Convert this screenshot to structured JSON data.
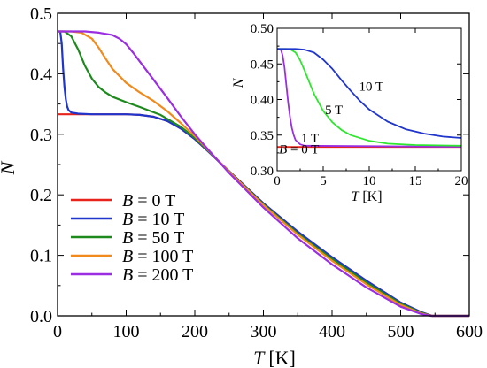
{
  "chart_data": [
    {
      "type": "line",
      "xlabel": "T",
      "xunit": "[K]",
      "ylabel": "N",
      "xlim": [
        0,
        600
      ],
      "ylim": [
        0,
        0.5
      ],
      "xticks": [
        "0",
        "100",
        "200",
        "300",
        "400",
        "500",
        "600"
      ],
      "yticks": [
        "0.0",
        "0.1",
        "0.2",
        "0.3",
        "0.4",
        "0.5"
      ],
      "legend_position": "lower-left",
      "series": [
        {
          "legend_var": "B",
          "legend_value": " = 0 T",
          "color": "#e8231c",
          "x": [
            0,
            50,
            100,
            120,
            140,
            160,
            180,
            200,
            220,
            250,
            300,
            350,
            400,
            450,
            500,
            530,
            546,
            600
          ],
          "y": [
            0.333,
            0.333,
            0.333,
            0.332,
            0.329,
            0.322,
            0.309,
            0.292,
            0.271,
            0.239,
            0.186,
            0.139,
            0.097,
            0.058,
            0.022,
            0.006,
            0.0,
            0.0
          ]
        },
        {
          "legend_var": "B",
          "legend_value": " = 10 T",
          "color": "#1f35cc",
          "x": [
            0,
            2,
            4,
            6,
            8,
            10,
            12,
            14,
            16,
            20,
            30,
            50,
            100,
            120,
            140,
            160,
            180,
            200,
            220,
            250,
            300,
            350,
            400,
            450,
            500,
            530,
            546,
            600
          ],
          "y": [
            0.47,
            0.47,
            0.469,
            0.45,
            0.41,
            0.378,
            0.358,
            0.346,
            0.34,
            0.336,
            0.334,
            0.333,
            0.333,
            0.332,
            0.329,
            0.322,
            0.309,
            0.292,
            0.271,
            0.239,
            0.186,
            0.139,
            0.097,
            0.058,
            0.022,
            0.006,
            0.0,
            0.0
          ]
        },
        {
          "legend_var": "B",
          "legend_value": " = 50 T",
          "color": "#1e8a1e",
          "x": [
            0,
            10,
            20,
            30,
            40,
            50,
            60,
            70,
            80,
            100,
            120,
            150,
            180,
            200,
            220,
            250,
            300,
            350,
            400,
            450,
            500,
            530,
            545,
            600
          ],
          "y": [
            0.47,
            0.47,
            0.462,
            0.44,
            0.413,
            0.392,
            0.378,
            0.369,
            0.362,
            0.353,
            0.345,
            0.332,
            0.312,
            0.294,
            0.272,
            0.238,
            0.184,
            0.136,
            0.094,
            0.055,
            0.02,
            0.005,
            0.0,
            0.0
          ]
        },
        {
          "legend_var": "B",
          "legend_value": " = 100 T",
          "color": "#f08a1c",
          "x": [
            0,
            20,
            35,
            50,
            60,
            70,
            80,
            100,
            120,
            140,
            160,
            180,
            200,
            220,
            250,
            300,
            350,
            400,
            450,
            500,
            530,
            545,
            600
          ],
          "y": [
            0.47,
            0.47,
            0.468,
            0.458,
            0.443,
            0.425,
            0.408,
            0.385,
            0.369,
            0.355,
            0.338,
            0.318,
            0.297,
            0.273,
            0.238,
            0.183,
            0.134,
            0.091,
            0.052,
            0.018,
            0.004,
            0.0,
            0.0
          ]
        },
        {
          "legend_var": "B",
          "legend_value": " = 200 T",
          "color": "#9a2ee0",
          "x": [
            0,
            40,
            60,
            80,
            90,
            100,
            110,
            120,
            140,
            160,
            180,
            200,
            220,
            250,
            300,
            350,
            400,
            450,
            500,
            530,
            544,
            600
          ],
          "y": [
            0.47,
            0.47,
            0.468,
            0.464,
            0.458,
            0.449,
            0.435,
            0.42,
            0.39,
            0.36,
            0.329,
            0.3,
            0.274,
            0.236,
            0.179,
            0.128,
            0.085,
            0.047,
            0.015,
            0.003,
            0.0,
            0.0
          ]
        }
      ]
    },
    {
      "type": "line",
      "xlabel": "T",
      "xunit": "[K]",
      "ylabel": "N",
      "xlim": [
        0,
        20
      ],
      "ylim": [
        0.3,
        0.5
      ],
      "xticks": [
        "0",
        "5",
        "10",
        "15",
        "20"
      ],
      "yticks": [
        "0.30",
        "0.35",
        "0.40",
        "0.45",
        "0.50"
      ],
      "series": [
        {
          "label": "B = 0 T",
          "annot_var": "B",
          "annot_value": " = 0 T",
          "color": "#e8231c",
          "x": [
            0,
            20
          ],
          "y": [
            0.3333,
            0.3333
          ]
        },
        {
          "label": "1 T",
          "annot_value": "1 T",
          "color": "#9a2ee0",
          "x": [
            0,
            0.2,
            0.4,
            0.6,
            0.8,
            1.0,
            1.2,
            1.4,
            1.6,
            1.8,
            2.0,
            2.5,
            3.0,
            20
          ],
          "y": [
            0.471,
            0.471,
            0.47,
            0.462,
            0.445,
            0.42,
            0.395,
            0.375,
            0.36,
            0.35,
            0.343,
            0.337,
            0.335,
            0.3335
          ]
        },
        {
          "label": "5 T",
          "annot_value": "5 T",
          "color": "#2ee62e",
          "x": [
            0,
            1,
            1.5,
            2,
            2.5,
            3,
            3.5,
            4,
            5,
            6,
            7,
            8,
            10,
            12,
            15,
            20
          ],
          "y": [
            0.471,
            0.471,
            0.47,
            0.466,
            0.455,
            0.44,
            0.424,
            0.408,
            0.384,
            0.368,
            0.357,
            0.35,
            0.342,
            0.338,
            0.336,
            0.335
          ]
        },
        {
          "label": "10 T",
          "annot_value": "10 T",
          "color": "#1f35cc",
          "x": [
            0,
            2,
            3,
            4,
            5,
            6,
            7,
            8,
            9,
            10,
            12,
            14,
            16,
            18,
            20
          ],
          "y": [
            0.471,
            0.471,
            0.47,
            0.466,
            0.456,
            0.443,
            0.427,
            0.412,
            0.398,
            0.386,
            0.369,
            0.358,
            0.352,
            0.348,
            0.346
          ]
        }
      ]
    }
  ]
}
